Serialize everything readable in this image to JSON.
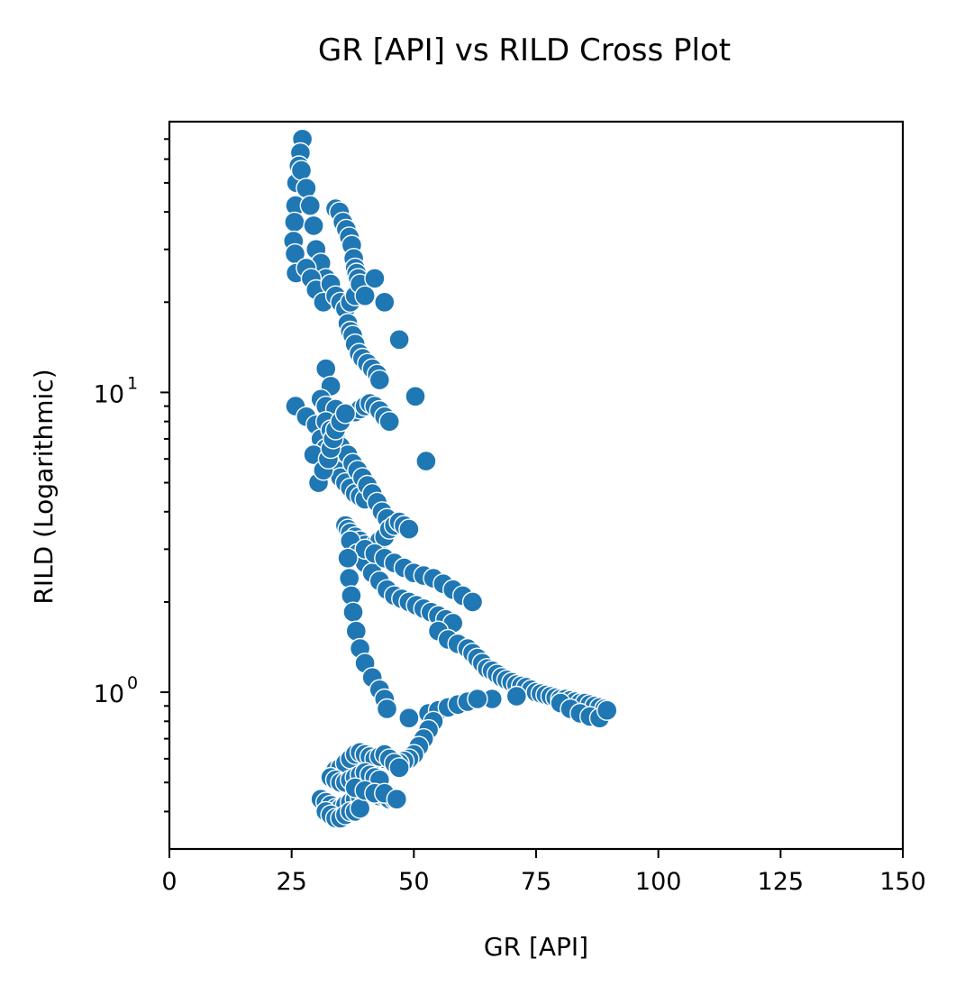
{
  "chart_data": {
    "type": "scatter",
    "title": "GR [API] vs RILD Cross Plot",
    "xlabel": "GR [API]",
    "ylabel": "RILD (Logarithmic)",
    "xlim": [
      0,
      150
    ],
    "ylim": [
      0.3,
      80
    ],
    "yscale": "log",
    "grid": false,
    "marker_color": "#1f77b4",
    "marker_edge_color": "#ffffff",
    "x_ticks": [
      0,
      25,
      50,
      75,
      100,
      125,
      150
    ],
    "x_tick_labels": [
      "0",
      "25",
      "50",
      "75",
      "100",
      "125",
      "150"
    ],
    "y_major_ticks": [
      1,
      10
    ],
    "y_tick_labels": [
      {
        "base": "10",
        "exp": "0"
      },
      {
        "base": "10",
        "exp": "1"
      }
    ],
    "y_minor_ticks": [
      0.4,
      0.5,
      0.6,
      0.7,
      0.8,
      0.9,
      2,
      3,
      4,
      5,
      6,
      7,
      8,
      9,
      20,
      30,
      40,
      50,
      60,
      70
    ],
    "x": [
      27.2,
      26.8,
      26.5,
      26.0,
      25.8,
      25.6,
      25.4,
      25.7,
      25.9,
      27.0,
      28.0,
      28.8,
      29.5,
      30.0,
      31.0,
      32.0,
      28.0,
      29.0,
      30.0,
      31.5,
      33.0,
      34.0,
      35.0,
      36.0,
      37.0,
      38.0,
      38.5,
      34.0,
      34.8,
      35.5,
      36.2,
      36.8,
      37.3,
      37.7,
      38.0,
      38.3,
      38.6,
      32.0,
      33.0,
      39.0,
      40.0,
      42.0,
      44.0,
      47.0,
      36.5,
      37.0,
      37.5,
      38.0,
      38.8,
      39.5,
      40.5,
      41.5,
      42.5,
      43.0,
      31.0,
      32.0,
      34.0,
      36.0,
      38.0,
      39.0,
      40.0,
      41.0,
      42.0,
      43.0,
      44.0,
      45.0,
      25.8,
      28.0,
      30.0,
      31.0,
      32.0,
      33.0,
      34.0,
      35.0,
      36.0,
      37.0,
      38.0,
      39.0,
      40.0,
      32.0,
      33.0,
      34.0,
      35.0,
      36.5,
      37.5,
      38.5,
      39.5,
      40.5,
      41.5,
      42.5,
      43.5,
      44.5,
      29.5,
      30.5,
      31.5,
      32.5,
      33.0,
      33.5,
      34.0,
      35.0,
      36.0,
      50.3,
      52.5,
      36.0,
      36.5,
      37.0,
      38.0,
      39.0,
      40.0,
      41.0,
      42.0,
      43.0,
      44.0,
      45.0,
      46.0,
      47.0,
      48.0,
      49.0,
      37.0,
      38.5,
      40.0,
      41.5,
      43.0,
      44.5,
      46.0,
      47.5,
      49.0,
      50.5,
      52.0,
      53.5,
      55.0,
      56.5,
      58.0,
      40.0,
      42.0,
      44.0,
      46.0,
      48.0,
      50.0,
      52.0,
      54.0,
      56.0,
      58.0,
      60.0,
      62.0,
      36.5,
      36.8,
      37.2,
      37.6,
      38.2,
      39.0,
      40.0,
      41.5,
      43.0,
      44.0,
      44.5,
      55.0,
      57.0,
      59.0,
      61.0,
      62.0,
      63.0,
      64.0,
      65.0,
      66.0,
      67.0,
      68.0,
      69.0,
      70.0,
      71.0,
      72.0,
      73.0,
      74.0,
      75.0,
      76.0,
      77.0,
      78.0,
      79.0,
      80.0,
      81.0,
      82.0,
      83.0,
      84.0,
      85.0,
      86.0,
      87.0,
      88.0,
      89.0,
      80.0,
      82.0,
      84.0,
      86.0,
      88.0,
      89.5,
      66.0,
      71.0,
      49.0,
      53.0,
      55.0,
      57.0,
      59.0,
      61.0,
      63.0,
      54.0,
      53.0,
      52.0,
      51.0,
      50.0,
      49.0,
      48.0,
      47.0,
      46.0,
      45.0,
      44.0,
      43.0,
      34.0,
      35.0,
      36.0,
      37.0,
      38.0,
      39.0,
      40.0,
      41.0,
      42.0,
      43.0,
      44.0,
      45.0,
      46.0,
      47.0,
      33.0,
      34.0,
      35.0,
      36.0,
      37.0,
      38.0,
      39.0,
      40.0,
      41.0,
      42.0,
      43.0,
      31.0,
      32.0,
      33.0,
      34.0,
      35.0,
      36.0,
      37.0,
      38.0,
      39.0,
      40.0,
      41.0,
      42.0,
      43.0,
      44.0,
      45.0,
      46.0,
      32.0,
      33.0,
      34.0,
      35.0,
      36.0,
      37.0,
      38.0,
      39.0,
      38.0,
      40.0,
      42.0,
      44.0,
      46.5
    ],
    "y": [
      70,
      63,
      57,
      50,
      42,
      37,
      32,
      29,
      25,
      55,
      48,
      42,
      36,
      30,
      27,
      24,
      26,
      24,
      22,
      20,
      23,
      21,
      20,
      19,
      20,
      21,
      25,
      41,
      40,
      37,
      35,
      33,
      31,
      28,
      26,
      25,
      24,
      12,
      10.5,
      23,
      21,
      24,
      20,
      15,
      17,
      16,
      15.5,
      14.5,
      13.5,
      13,
      12.5,
      12,
      11.5,
      11,
      9.5,
      9.0,
      8.8,
      8.5,
      8.6,
      8.8,
      9.0,
      9.2,
      9.0,
      8.7,
      8.3,
      8.0,
      9.0,
      8.3,
      7.8,
      7.0,
      6.5,
      6.0,
      5.5,
      5.2,
      5.0,
      4.8,
      4.6,
      4.5,
      4.4,
      8.0,
      7.5,
      7.0,
      6.6,
      6.2,
      5.8,
      5.5,
      5.2,
      4.9,
      4.6,
      4.3,
      4.0,
      3.8,
      6.2,
      5.0,
      5.5,
      6.0,
      6.5,
      7.0,
      7.5,
      8.0,
      8.5,
      9.7,
      5.9,
      3.6,
      3.5,
      3.4,
      3.3,
      3.2,
      3.1,
      3.0,
      3.1,
      3.2,
      3.3,
      3.5,
      3.6,
      3.7,
      3.6,
      3.5,
      3.2,
      2.9,
      2.7,
      2.5,
      2.35,
      2.2,
      2.1,
      2.05,
      2.0,
      1.95,
      1.9,
      1.85,
      1.8,
      1.75,
      1.7,
      3.0,
      2.9,
      2.8,
      2.7,
      2.6,
      2.5,
      2.45,
      2.4,
      2.3,
      2.2,
      2.1,
      2.0,
      2.8,
      2.4,
      2.1,
      1.85,
      1.6,
      1.4,
      1.25,
      1.12,
      1.02,
      0.95,
      0.88,
      1.6,
      1.5,
      1.45,
      1.4,
      1.35,
      1.3,
      1.25,
      1.2,
      1.18,
      1.15,
      1.12,
      1.1,
      1.08,
      1.06,
      1.05,
      1.04,
      1.02,
      1.0,
      0.99,
      0.98,
      0.97,
      0.96,
      0.95,
      0.95,
      0.94,
      0.93,
      0.92,
      0.92,
      0.91,
      0.9,
      0.89,
      0.88,
      0.92,
      0.88,
      0.85,
      0.83,
      0.82,
      0.87,
      0.95,
      0.97,
      0.82,
      0.85,
      0.87,
      0.89,
      0.91,
      0.93,
      0.95,
      0.8,
      0.75,
      0.7,
      0.66,
      0.62,
      0.6,
      0.59,
      0.58,
      0.58,
      0.59,
      0.6,
      0.61,
      0.55,
      0.56,
      0.58,
      0.6,
      0.62,
      0.63,
      0.62,
      0.61,
      0.6,
      0.61,
      0.62,
      0.6,
      0.58,
      0.56,
      0.52,
      0.51,
      0.5,
      0.5,
      0.51,
      0.52,
      0.53,
      0.54,
      0.53,
      0.52,
      0.51,
      0.44,
      0.43,
      0.42,
      0.41,
      0.41,
      0.42,
      0.43,
      0.44,
      0.45,
      0.45,
      0.46,
      0.46,
      0.45,
      0.45,
      0.44,
      0.44,
      0.4,
      0.39,
      0.38,
      0.38,
      0.39,
      0.4,
      0.4,
      0.41,
      0.48,
      0.47,
      0.46,
      0.46,
      0.44
    ]
  }
}
